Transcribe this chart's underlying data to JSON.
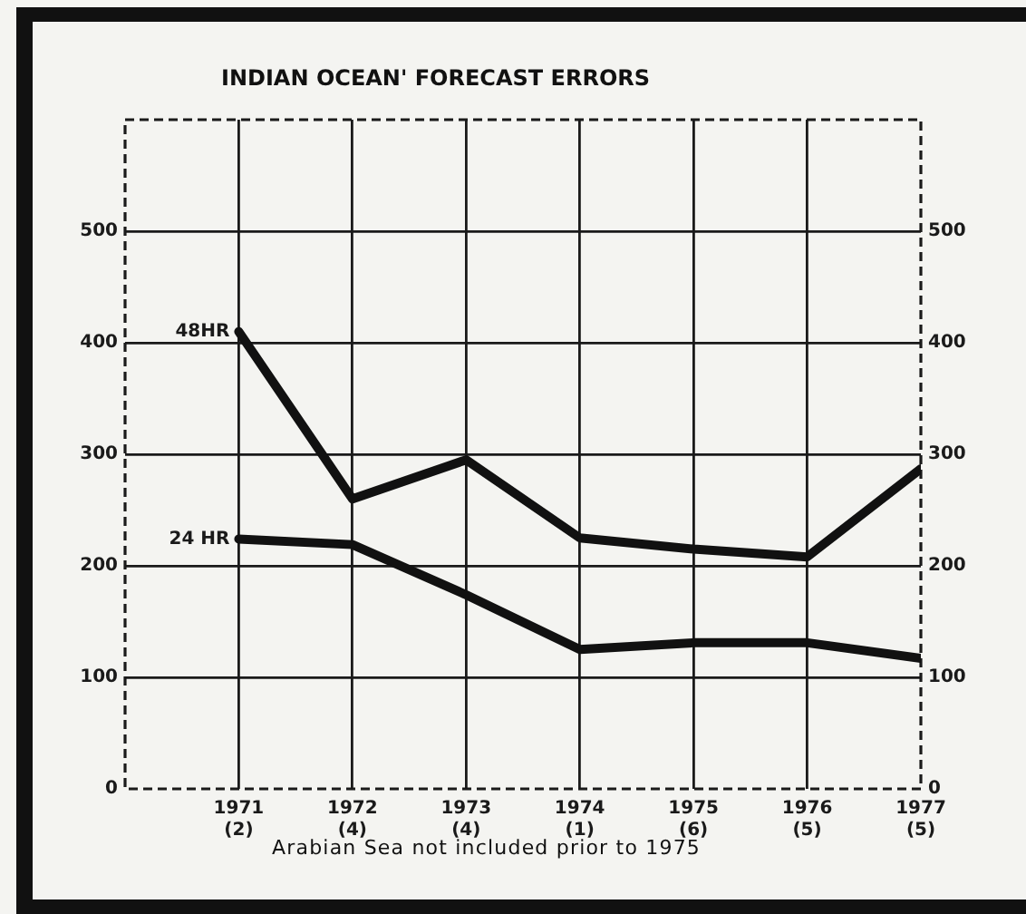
{
  "chart_data": {
    "type": "line",
    "title": "INDIAN OCEAN' FORECAST ERRORS",
    "annotations": [
      "Arabian Sea not included prior to 1975"
    ],
    "categories": [
      "1971\n(2)",
      "1972\n(4)",
      "1973\n(4)",
      "1974\n(1)",
      "1975\n(6)",
      "1976\n(5)",
      "1977\n(5)"
    ],
    "series": [
      {
        "name": "48HR",
        "color": "#111111",
        "values": [
          410,
          260,
          295,
          225,
          215,
          208,
          287
        ]
      },
      {
        "name": "24 HR",
        "color": "#111111",
        "values": [
          224,
          219,
          174,
          125,
          131,
          131,
          117
        ]
      }
    ],
    "ylim": [
      0,
      600
    ],
    "yticks": [
      0,
      100,
      200,
      300,
      400,
      500
    ],
    "y2lim": [
      0,
      600
    ],
    "y2ticks": [
      0,
      100,
      200,
      300,
      400,
      500
    ],
    "grid": true,
    "legend": false,
    "marker": "none",
    "line_style": "solid"
  }
}
